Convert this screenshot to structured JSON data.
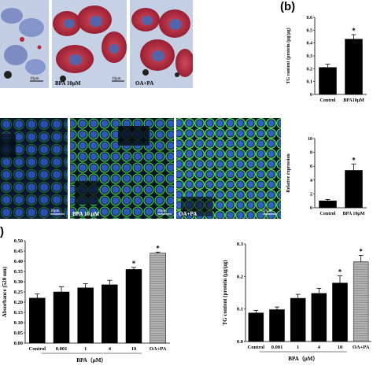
{
  "panel_labels": {
    "b": "(b)",
    "c": ")"
  },
  "micrographs_top": [
    {
      "caption": "",
      "scale": "10μm"
    },
    {
      "caption": "BPA 10μM",
      "scale": "10μm"
    },
    {
      "caption": "OA+PA",
      "scale": ""
    }
  ],
  "micrographs_fluor": [
    {
      "caption": "",
      "scale": "30μm"
    },
    {
      "caption": "BPA 10 μM",
      "scale": "30μm"
    },
    {
      "caption": "OA+PA",
      "scale": "30μm"
    }
  ],
  "colors": {
    "bar": "#000000",
    "hatched": "#999999",
    "hema_bg": "#c9d4e8",
    "hema_red": "#b8253a",
    "fluor_bg": "#0a1020",
    "fluor_green": "#3fbf4a",
    "fluor_blue": "#2a4fb0"
  },
  "chart_data": [
    {
      "type": "bar",
      "ylabel": "TG content (protein (μg/μg)",
      "yticks": [
        "0",
        "0.1",
        "0.2",
        "0.3",
        "0.4",
        "0.5",
        "0.6"
      ],
      "ylim": [
        0,
        0.6
      ],
      "categories": [
        "Control",
        "BPA10μM"
      ],
      "values": [
        0.21,
        0.43
      ],
      "errors": [
        0.025,
        0.035
      ],
      "significance": [
        "",
        "*"
      ]
    },
    {
      "type": "bar",
      "ylabel": "Relative expression",
      "yticks": [
        "0",
        "2",
        "4",
        "6",
        "8",
        "10"
      ],
      "ylim": [
        0,
        10
      ],
      "categories": [
        "Control",
        "BPA 10μM"
      ],
      "values": [
        1.0,
        5.4
      ],
      "errors": [
        0.2,
        0.9
      ],
      "significance": [
        "",
        "*"
      ]
    },
    {
      "type": "bar",
      "ylabel": "Absorbance (520 nm)",
      "yticks": [
        "0.00",
        "0.05",
        "0.10",
        "0.15",
        "0.20",
        "0.25",
        "0.30",
        "0.35",
        "0.40",
        "0.45",
        "0.50"
      ],
      "ylim": [
        0,
        0.5
      ],
      "categories": [
        "Control",
        "0.001",
        "1",
        "4",
        "10",
        "OA+PA"
      ],
      "values": [
        0.22,
        0.25,
        0.27,
        0.285,
        0.36,
        0.44
      ],
      "errors": [
        0.02,
        0.025,
        0.02,
        0.022,
        0.01,
        0.005
      ],
      "significance": [
        "",
        "",
        "",
        "",
        "*",
        "*"
      ],
      "xlabel": "BPA（μM）"
    },
    {
      "type": "bar",
      "ylabel": "TG content (protein (μg/μg)",
      "yticks": [
        "0.0",
        "0.1",
        "0.2",
        "0.3"
      ],
      "ylim": [
        0,
        0.3
      ],
      "categories": [
        "Control",
        "0.001",
        "1",
        "4",
        "10",
        "OA+PA"
      ],
      "values": [
        0.088,
        0.098,
        0.133,
        0.148,
        0.18,
        0.245
      ],
      "errors": [
        0.008,
        0.008,
        0.012,
        0.015,
        0.022,
        0.02
      ],
      "significance": [
        "",
        "",
        "",
        "",
        "*",
        "*"
      ],
      "xlabel": "BPA（μM）"
    }
  ]
}
